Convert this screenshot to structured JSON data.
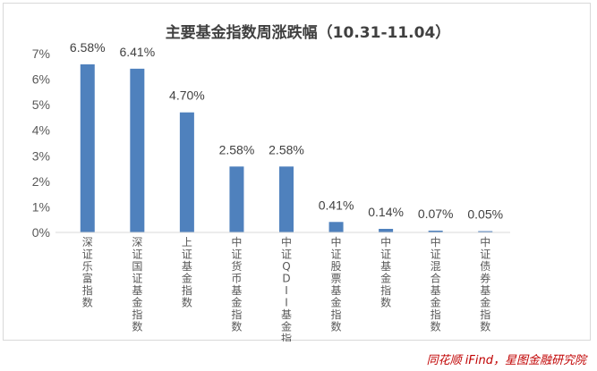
{
  "chart_data": {
    "type": "bar",
    "title": "主要基金指数周涨跌幅（10.31-11.04）",
    "categories": [
      "深证乐富指数",
      "深证国证基金指数",
      "上证基金指数",
      "中证货币基金指数",
      "中证QDII基金指数",
      "中证股票基金指数",
      "中证基金指数",
      "中证混合基金指数",
      "中证债券基金指数"
    ],
    "values": [
      6.58,
      6.41,
      4.7,
      2.58,
      2.58,
      0.41,
      0.14,
      0.07,
      0.05
    ],
    "data_labels": [
      "6.58%",
      "6.41%",
      "4.70%",
      "2.58%",
      "2.58%",
      "0.41%",
      "0.14%",
      "0.07%",
      "0.05%"
    ],
    "y_ticks": [
      "0%",
      "1%",
      "2%",
      "3%",
      "4%",
      "5%",
      "6%",
      "7%"
    ],
    "ylim": [
      0,
      7
    ],
    "xlabel": "",
    "ylabel": "",
    "grid": false,
    "bar_color": "#4f81bd"
  },
  "credit": "同花顺 iFind，星图金融研究院"
}
